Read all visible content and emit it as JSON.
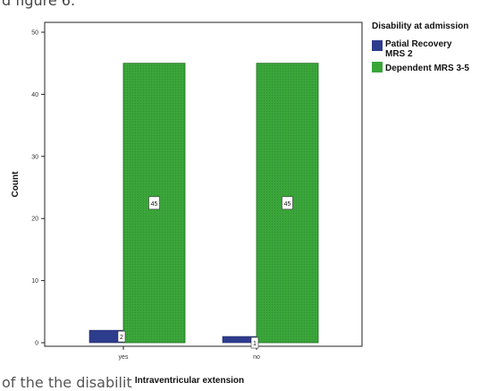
{
  "page": {
    "caption_top": "d figure 6.",
    "caption_bottom": "of the                                              the    disabilit"
  },
  "colors": {
    "series_1": "#2e3c8e",
    "series_2": "#3aa63a",
    "series_2_border": "#1f6e1f",
    "plot_frame": "#222222",
    "background": "#ffffff"
  },
  "chart_data": {
    "type": "bar",
    "xlabel": "Intraventricular extension",
    "ylabel": "Count",
    "categories": [
      "yes",
      "no"
    ],
    "ylim": [
      0,
      50
    ],
    "yticks": [
      0,
      10,
      20,
      30,
      40,
      50
    ],
    "grid": false,
    "legend": {
      "title": "Disability at admission",
      "placement": "right"
    },
    "series": [
      {
        "name": "Patial Recovery MRS 2",
        "values": [
          2,
          1
        ],
        "value_labels": [
          "2",
          "1"
        ]
      },
      {
        "name": "Dependent MRS 3-5",
        "values": [
          45,
          45
        ],
        "value_labels": [
          "45",
          "45"
        ]
      }
    ]
  }
}
